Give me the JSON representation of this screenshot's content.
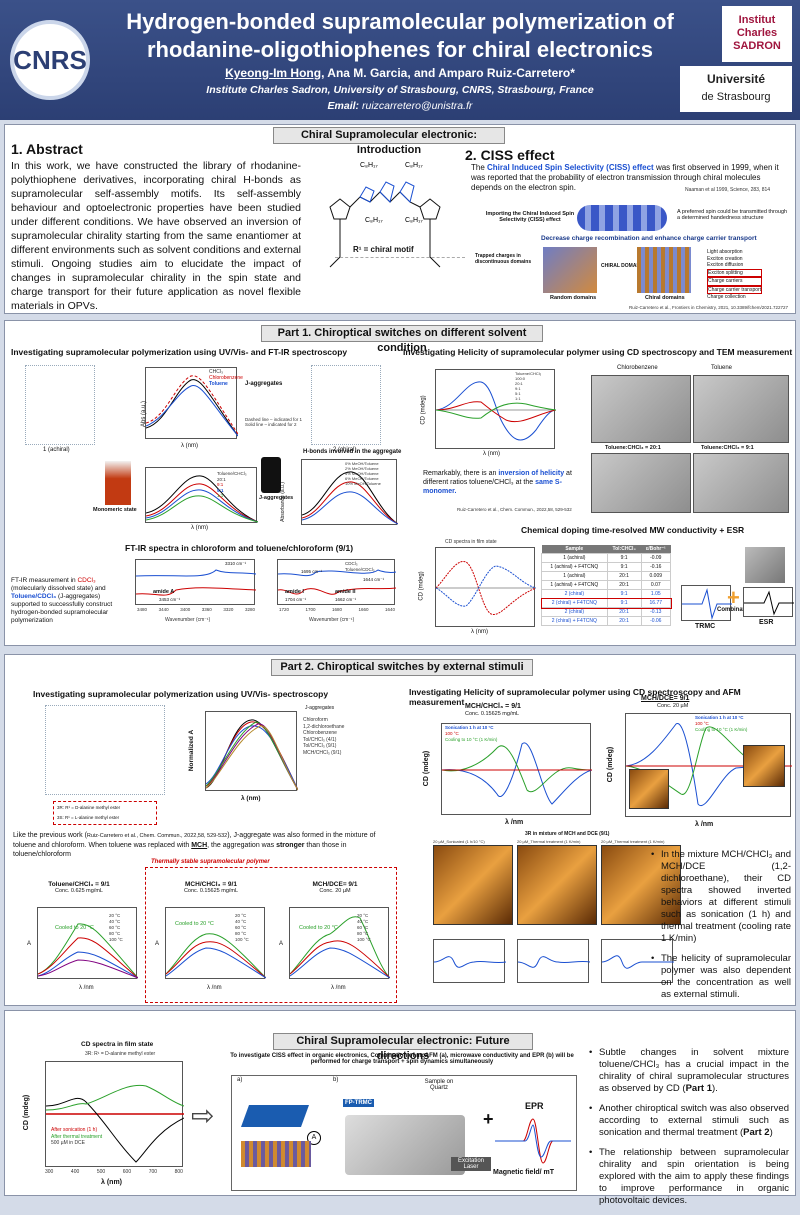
{
  "header": {
    "title": "Hydrogen-bonded supramolecular polymerization of rhodanine-oligothiophenes for chiral electronics",
    "authors_first": "Kyeong-Im Hong",
    "authors_rest": ", Ana M. Garcia, and Amparo Ruiz-Carretero*",
    "institute": "Institute Charles Sadron, University of Strasbourg, CNRS, Strasbourg, France",
    "email_label": "Email:",
    "email": "ruizcarretero@unistra.fr",
    "logo_cnrs": "CNRS",
    "logo_sadron": "Institut Charles SADRON",
    "logo_uni_top": "Université",
    "logo_uni_bottom": "de Strasbourg"
  },
  "intro": {
    "banner": "Chiral Supramolecular electronic: Introduction",
    "abstract_title": "1. Abstract",
    "abstract_text": "In this work, we have constructed the library of rhodanine-polythiophene derivatives, incorporating chiral H-bonds as supramolecular self-assembly motifs. Its self-assembly behaviour and optoelectronic properties have been studied under different conditions. We have observed an inversion of supramolecular chirality starting from the same enantiomer at different environments such as solvent conditions and external stimuli. Ongoing studies aim to elucidate the impact of changes in supramolecular chirality in the spin state and charge transport for their future application as novel flexible materials in OPVs.",
    "r1_label": "R¹ = chiral motif",
    "ciss_title": "2. CISS effect",
    "ciss_pre": "The ",
    "ciss_bold": "Chiral Induced Spin Selectivity (CISS) effect",
    "ciss_text": " was first observed in 1999, when it was reported that the probability of electron transmission through chiral molecules depends on the electron spin.",
    "ciss_ref": "Naaman et al 1999, Science, 283, 814",
    "ciss_importing": "Importing the Chiral Induced Spin Selectivity (CISS) effect",
    "ciss_spin": "A preferred spin could be transmitted through a determined handedness structure",
    "ciss_decrease": "Decrease charge recombination and enhance charge carrier transport",
    "trapped": "Trapped charges in discontinuous domains",
    "chiral_domains_label": "CHIRAL DOMAINS",
    "random_domains": "Random domains",
    "chiral_domains": "Chiral domains",
    "steps": [
      "Light absorption",
      "Exciton creation",
      "Exciton diffusion",
      "Exciton splitting",
      "Charge carriers",
      "Charge carrier transport",
      "Charge collection"
    ],
    "ref2": "Ruiz-Carretero et al., Frontiers in Chemistry, 2021, 10.3389/fchem/2021.722727"
  },
  "part1": {
    "banner": "Part 1. Chiroptical switches on different solvent condition",
    "left_title": "Investigating supramolecular polymerization using UV/Vis- and FT-IR spectroscopy",
    "right_title": "Investigating Helicity of supramolecular polymer using CD spectroscopy and TEM measurement",
    "achiral": "1 (achiral)",
    "chiral": "2 (chiral)",
    "j_aggregates": "J-aggregates",
    "legend_solvents": [
      "CHCl₃",
      "Chlorobenzene",
      "Toluene"
    ],
    "dashed_note": "Dashed line – indicated for 1  Solid line – indicated for 2",
    "monomeric": "Monomeric state",
    "j_aggregates2": "J-aggregates",
    "ratio_legend": [
      "Toluene/CHCl₃",
      "20:1",
      "9:1",
      "5:1",
      "1:1"
    ],
    "hbonds_title": "H-bonds involved in the aggregate",
    "meoh_legend": [
      "0% MeOH/Toluene",
      "2% MeOH/Toluene",
      "4% MeOH/Toluene",
      "6% MeOH/Toluene",
      "10% MeOH/Toluene"
    ],
    "axis_abs": "Abs (a.u.)",
    "axis_absorbance": "Absorbance (a.u.)",
    "axis_lambda": "λ (nm)",
    "axis_wavenumber": "Wavenumber (cm⁻¹)",
    "ftir_title": "FT-IR spectra in chloroform and toluene/chloroform (9/1)",
    "ftir_text_pre": "FT-IR measurement in ",
    "ftir_cdcl3": "CDCl₃",
    "ftir_mid": " (molecularly dissolved state) and ",
    "ftir_tol": "Toluene/CDCl₃",
    "ftir_post": " (J-aggregates) supported to successfully construct hydrogen-bonded supramolecular polymerization",
    "ftir_legend": [
      "CDCl₃",
      "Toluene/CDCl₃"
    ],
    "amide_a": "amide A",
    "amide_a_val": "3453 cm⁻¹",
    "val_3310": "3310 cm⁻¹",
    "amide_i": "amide I",
    "amide_i_val": "1704 cm⁻¹",
    "amide_ii": "amide II",
    "amide_ii_val": "1662 cm⁻¹",
    "val_1695": "1695 cm⁻¹",
    "val_1644": "1644 cm⁻¹",
    "ftir_ticks_a": [
      "3480",
      "3440",
      "3400",
      "3360",
      "3320",
      "3280"
    ],
    "ftir_ticks_b": [
      "1720",
      "1700",
      "1680",
      "1660",
      "1640"
    ],
    "cd_axis": "CD (mdeg)",
    "cd_legend": [
      "Toluene/CHCl₃",
      "100:0",
      "20:1",
      "9:1",
      "5:1",
      "1:1"
    ],
    "tem_labels": [
      "Chlorobenzene",
      "Toluene",
      "Toluene:CHCl₃ = 20:1",
      "Toluene:CHCl₃ = 9:1"
    ],
    "tem_scale": "1 µm",
    "helicity_pre": "Remarkably, there is an ",
    "helicity_bold": "inversion of helicity",
    "helicity_mid": " at different ratios toluene/CHCl₃ at the ",
    "helicity_bold2": "same S-monomer.",
    "ref": "Ruiz-Carretero et al., Chem. Commun., 2022,58, 529-532",
    "doping_title": "Chemical doping time-resolved MW conductivity + ESR",
    "cd_film": "CD spectra in film state",
    "table_head": [
      "Sample",
      "Tol:CHCl₃",
      "ε/Bohr⁻¹"
    ],
    "table_rows": [
      [
        "1 (achiral)",
        "9:1",
        "-0.09"
      ],
      [
        "1 (achiral) + F4TCNQ",
        "9:1",
        "-0.16"
      ],
      [
        "1 (achiral)",
        "20:1",
        "0.009"
      ],
      [
        "1 (achiral) + F4TCNQ",
        "20:1",
        "0.07"
      ],
      [
        "2 (chiral)",
        "9:1",
        "1.05"
      ],
      [
        "2 (chiral) + F4TCNQ",
        "9:1",
        "16.77"
      ],
      [
        "2 (chiral)",
        "20:1",
        "-0.13"
      ],
      [
        "2 (chiral) + F4TCNQ",
        "20:1",
        "-0.06"
      ]
    ],
    "trmc": "TRMC",
    "combination": "Combination",
    "esr": "ESR"
  },
  "part2": {
    "banner": "Part 2. Chiroptical switches by external stimuli",
    "left_title": "Investigating supramolecular polymerization using UV/Vis- spectroscopy",
    "right_title": "Investigating Helicity of supramolecular polymer using CD spectroscopy and AFM measurement",
    "uv_legend": [
      "Chloroform",
      "1,2-dichloroethane",
      "Chlorobenzene",
      "Tol/CHCl₃ (4/1)",
      "Tol/CHCl₃ (9/1)",
      "MCH/CHCl₃ (9/1)"
    ],
    "j_aggregates": "J-aggregates",
    "norm_axis": "Normalized A",
    "lambda_nm": "λ (nm)",
    "r_labels": [
      "3R: R¹ = D-alanine methyl ester",
      "3S: R¹ = L-alanine methyl ester"
    ],
    "text_pre": "Like the previous work (",
    "text_ref": "Ruiz-Carretero et al., Chem. Commun., 2022,58, 529-532",
    "text_mid": "), J-aggregate was also formed in the mixture of toluene and chloroform. When toluene was replaced with ",
    "text_mch": "MCH",
    "text_mid2": ", the aggregation was ",
    "text_stronger": "stronger",
    "text_post": " than those in toluene/chloroform",
    "thermal_label": "Thermally stable supramolecular polymer",
    "temp_plots": [
      {
        "title": "Toluene/CHCl₃ = 9/1",
        "conc": "Conc. 0.625 mg/mL"
      },
      {
        "title": "MCH/CHCl₃ = 9/1",
        "conc": "Conc. 0.15625 mg/mL"
      },
      {
        "title": "MCH/DCE= 9/1",
        "conc": "Conc. 20 µM"
      }
    ],
    "temp_legend": [
      "20 °C",
      "40 °C",
      "60 °C",
      "80 °C",
      "100 °C"
    ],
    "cooled": "Cooled to 20 °C",
    "axis_A": "A",
    "axis_nm": "λ /nm",
    "cd_plots": [
      {
        "title": "MCH/CHCl₃ = 9/1",
        "conc": "Conc. 0.15625 mg/mL"
      },
      {
        "title": "MCH/DCE= 9/1",
        "conc": "Conc. 20 µM"
      }
    ],
    "cd_legend_a": [
      "Sonication 1 h at 10 °C",
      "100 °C",
      "Cooling to 10 °C (1 K/min)"
    ],
    "cd_legend_b": [
      "Sonication 1 h at 10 °C",
      "100 °C",
      "Cooling to 10 °C (1 K/min)"
    ],
    "cd_axis": "CD (mdeg)",
    "afm_title": "3R in mixture of MCH and DCE (9/1)",
    "afm_labels": [
      "20 µM_Sonicated (1 h/10 °C)",
      "20 µM_Thermal treatment (1 K/min)",
      "20 µM_Thermal treatment (1 K/min)"
    ],
    "bullet1_pre": "In the mixture MCH/CHCl₃ and MCH/DCE (1,2-dichloroethane), their CD spectra showed inverted behaviors at different stimuli such as sonication (1 h) and thermal treatment (cooling rate 1 K/min)",
    "bullet2": "The helicity of supramolecular polymer was also dependent on the concentration as well as external stimuli."
  },
  "future": {
    "banner": "Chiral Supramolecular electronic: Future directions",
    "cd_film_title": "CD spectra in film state",
    "r_label": "3R: R¹ = D-alanine methyl ester",
    "legend": [
      "After sonication (1 h)",
      "After thermal treatment",
      "500 µM in DCE"
    ],
    "cd_axis": "CD (mdeg)",
    "lambda_nm": "λ (nm)",
    "ticks_x": [
      "300",
      "400",
      "500",
      "600",
      "700",
      "800"
    ],
    "scheme_title": "To investigate CISS effect in organic electronics, Combination of mcAFM (a), microwave conductivity and EPR (b) will be performed for charge transport + spin dynamics simultaneously",
    "label_a": "a)",
    "label_b": "b)",
    "sample_quartz": "Sample on Quartz",
    "fp_trmc": "FP-TRMC",
    "excitation": "Excitation Laser",
    "epr": "EPR",
    "magnetic": "Magnetic field/ mT",
    "bullet1_pre": "Subtle changes in solvent mixture toluene/CHCl₃ has a crucial impact in the chirality of chiral supramolecular structures as observed by CD (",
    "bullet1_bold": "Part 1",
    "bullet1_post": ").",
    "bullet2_pre": "Another chiroptical switch was also observed according to external stimuli such as sonication and thermal treatment (",
    "bullet2_bold": "Part 2",
    "bullet2_post": ")",
    "bullet3": "The relationship between supramolecular chirality and spin orientation is being explored with the aim to apply these findings to improve performance in organic photovoltaic devices."
  },
  "colors": {
    "header": "#2c3f74",
    "blue": "#1a4fd1",
    "red": "#c00000",
    "green": "#2aa02a"
  }
}
